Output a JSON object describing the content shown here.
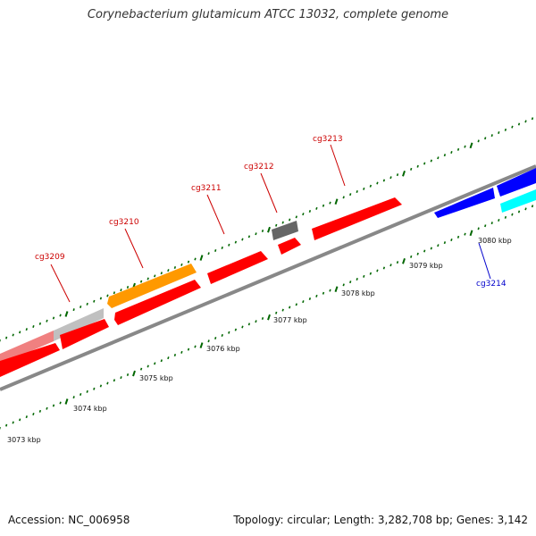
{
  "title": "Corynebacterium glutamicum ATCC 13032, complete genome",
  "footer": {
    "accession": "Accession: NC_006958",
    "info": "Topology: circular; Length: 3,282,708 bp; Genes: 3,142"
  },
  "kbp_labels": [
    "3073 kbp",
    "3074 kbp",
    "3075 kbp",
    "3076 kbp",
    "3077 kbp",
    "3078 kbp",
    "3079 kbp",
    "3080 kbp"
  ],
  "genes": [
    {
      "name": "cg3209",
      "color": "#cc0000"
    },
    {
      "name": "cg3210",
      "color": "#cc0000"
    },
    {
      "name": "cg3211",
      "color": "#cc0000"
    },
    {
      "name": "cg3212",
      "color": "#cc0000"
    },
    {
      "name": "cg3213",
      "color": "#cc0000"
    },
    {
      "name": "cg3214",
      "color": "#0000cc"
    }
  ],
  "colors": {
    "red": "#ff0000",
    "pink": "#f08080",
    "silver": "#c0c0c0",
    "orange": "#ff9900",
    "darkgray": "#666666",
    "blue": "#0000ff",
    "cyan": "#00ffff",
    "backbone": "#888888",
    "tick": "#006600"
  }
}
